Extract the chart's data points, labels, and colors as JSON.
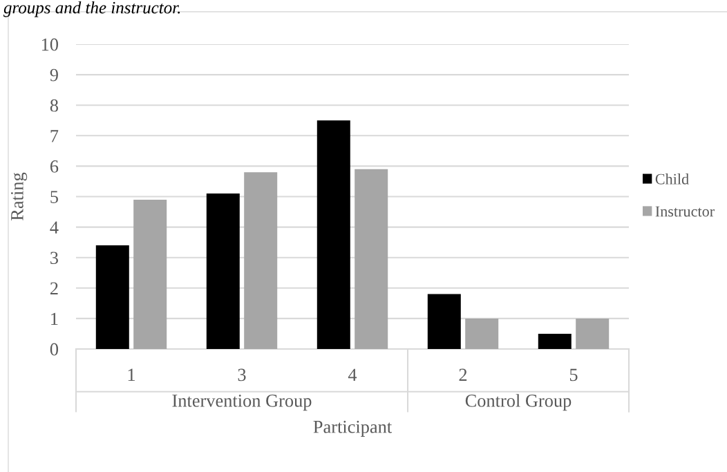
{
  "chart_data": {
    "type": "bar",
    "title": "groups and the instructor.",
    "xlabel": "Participant",
    "ylabel": "Rating",
    "categories": [
      "1",
      "3",
      "4",
      "2",
      "5"
    ],
    "series": [
      {
        "name": "Child",
        "color": "#000000",
        "values": [
          3.4,
          5.1,
          7.5,
          1.8,
          0.5
        ]
      },
      {
        "name": "Instructor",
        "color": "#a6a6a6",
        "values": [
          4.9,
          5.8,
          5.9,
          1.0,
          1.0
        ]
      }
    ],
    "annotations": [
      "Intervention Group",
      "Control Group"
    ],
    "ylim": [
      0,
      10
    ],
    "yticks": [
      0,
      1,
      2,
      3,
      4,
      5,
      6,
      7,
      8,
      9,
      10
    ],
    "grid": "y",
    "legend": "right"
  }
}
